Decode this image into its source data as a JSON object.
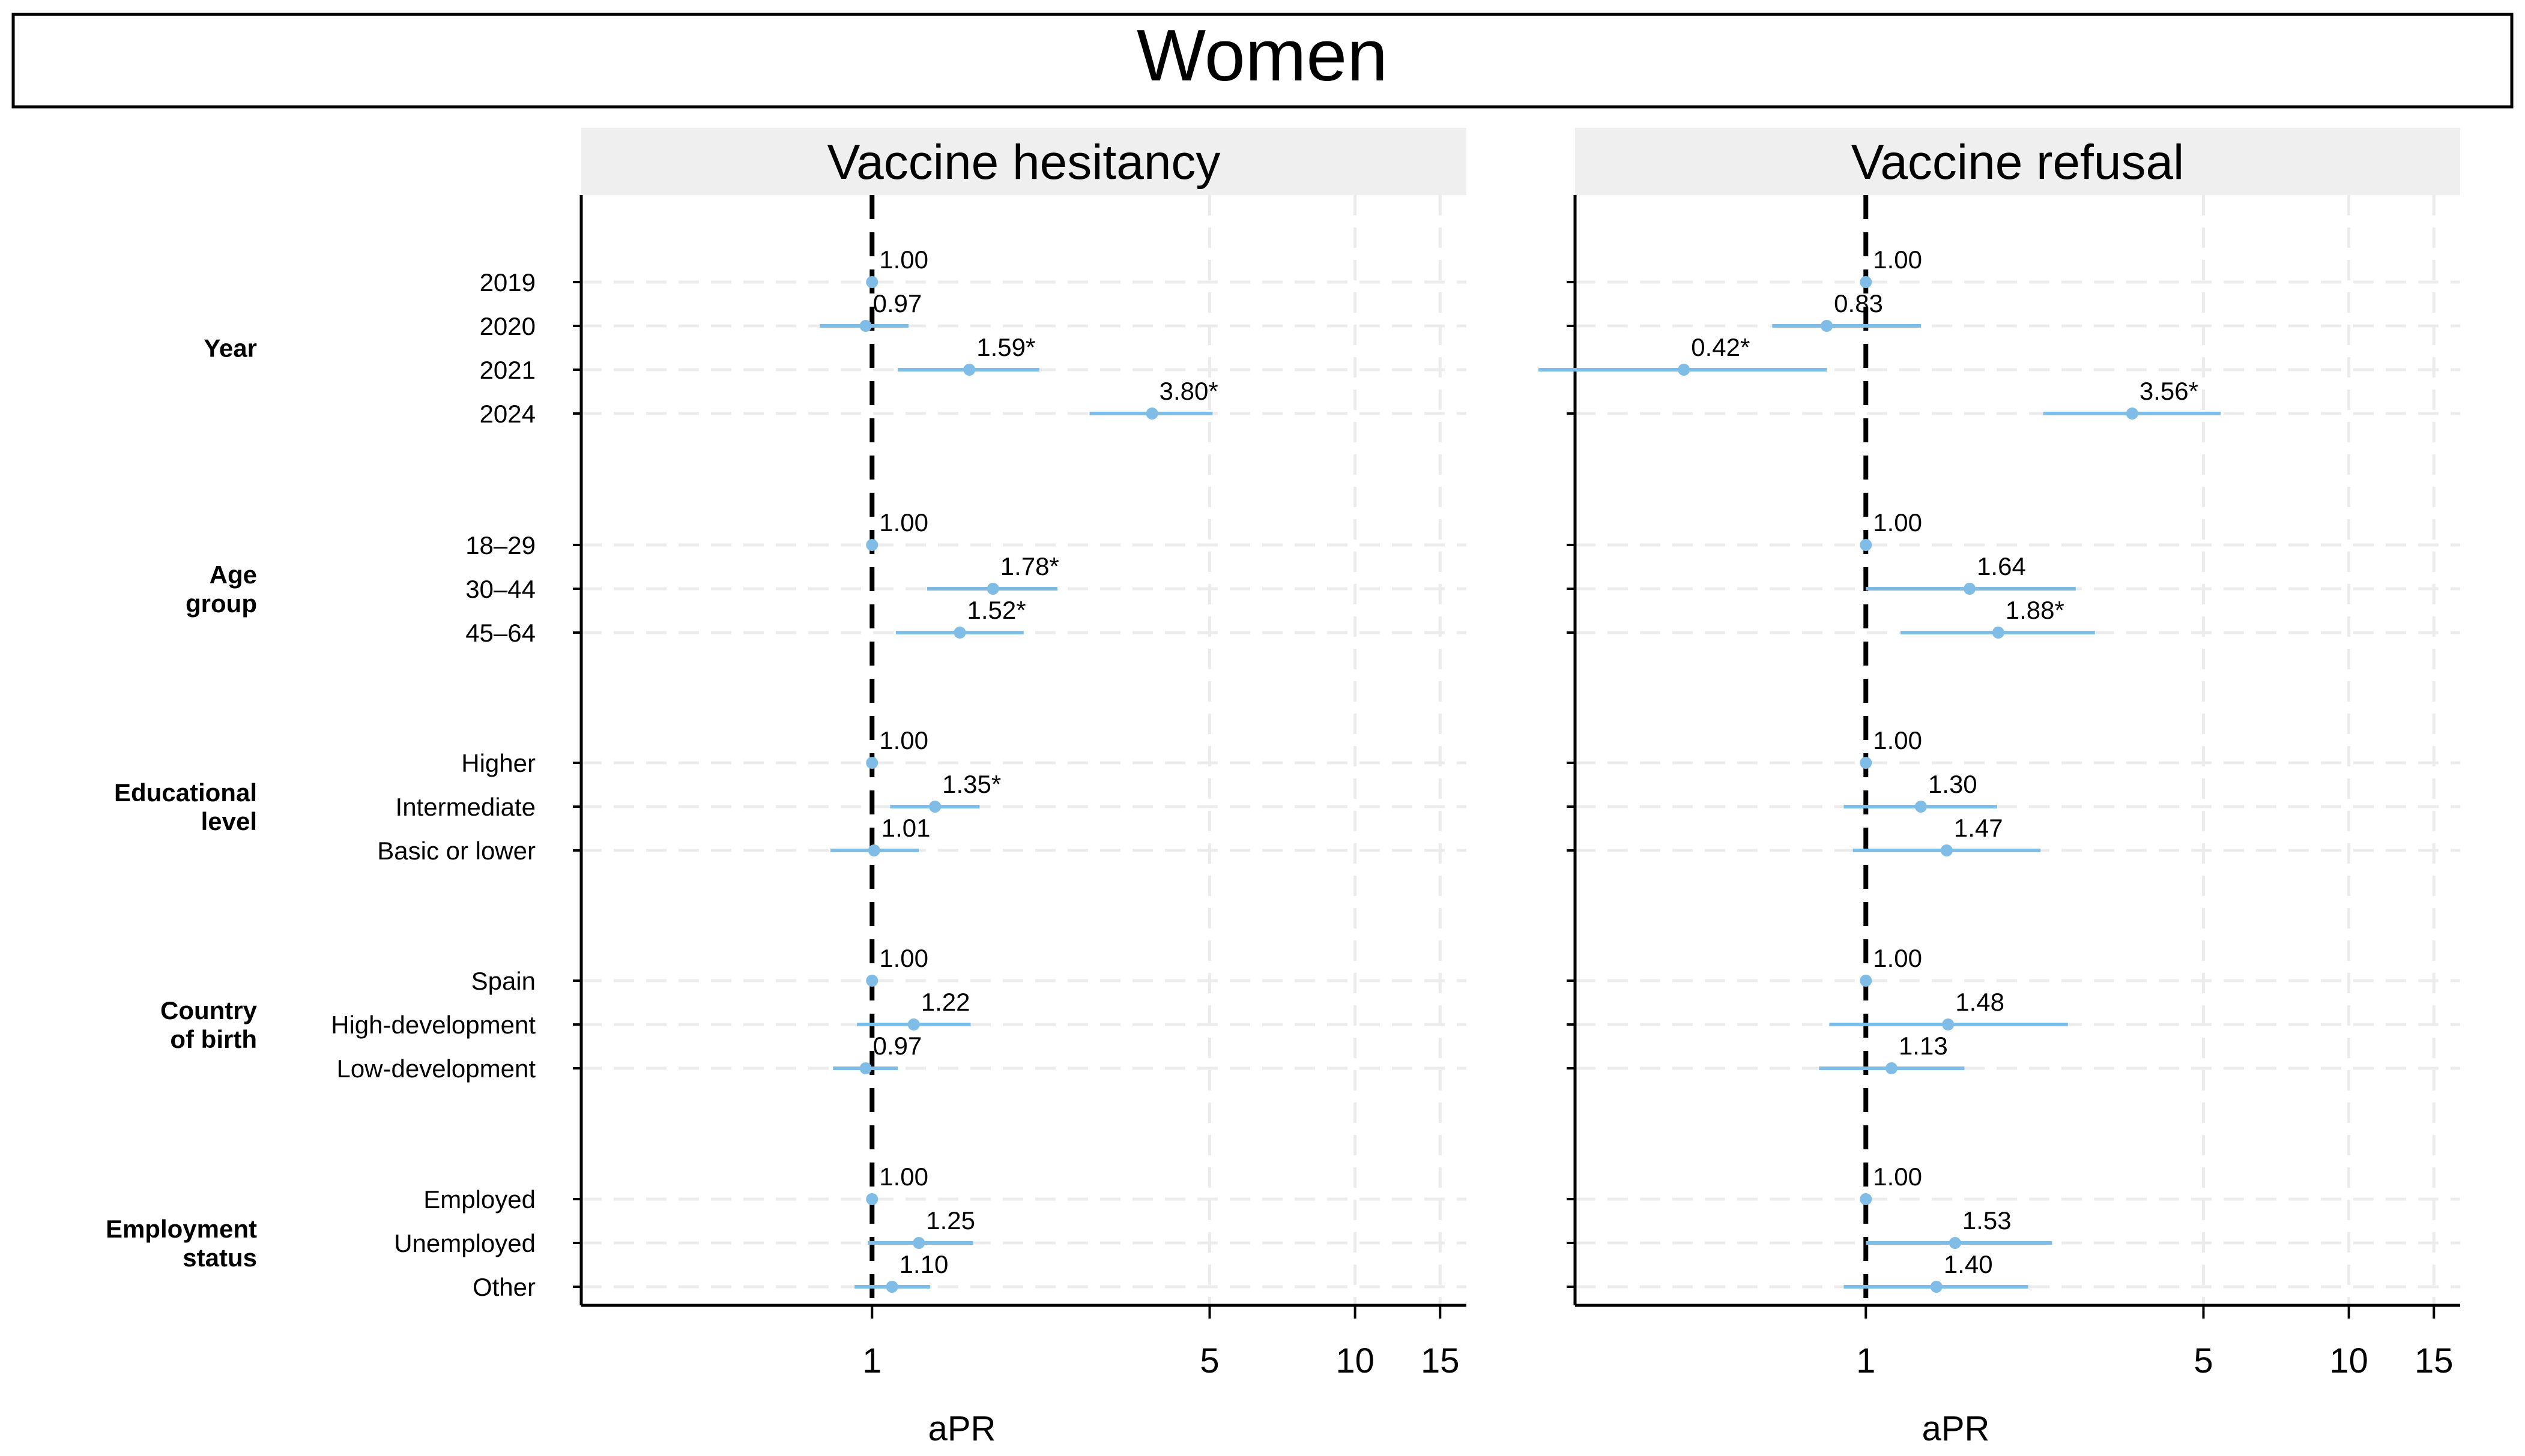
{
  "chart_data": {
    "type": "forest",
    "title": "Women",
    "xlabel": "aPR",
    "x_scale": "log",
    "xlim": [
      0.25,
      17
    ],
    "reference_line": 1,
    "x_ticks": [
      1,
      5,
      10,
      15
    ],
    "x_tick_labels": [
      "1",
      "5",
      "10",
      "15"
    ],
    "grid": true,
    "groups": [
      {
        "label": "Year",
        "categories": [
          "2019",
          "2020",
          "2021",
          "2024"
        ]
      },
      {
        "label": "Age\ngroup",
        "categories": [
          "18–29",
          "30–44",
          "45–64"
        ]
      },
      {
        "label": "Educational\nlevel",
        "categories": [
          "Higher",
          "Intermediate",
          "Basic or lower"
        ]
      },
      {
        "label": "Country\nof birth",
        "categories": [
          "Spain",
          "High-development",
          "Low-development"
        ]
      },
      {
        "label": "Employment\nstatus",
        "categories": [
          "Employed",
          "Unemployed",
          "Other"
        ]
      }
    ],
    "panels": [
      {
        "name": "Vaccine hesitancy",
        "estimates": [
          {
            "value": 1.0,
            "low": 1.0,
            "high": 1.0,
            "label": "1.00"
          },
          {
            "value": 0.97,
            "low": 0.78,
            "high": 1.19,
            "label": "0.97"
          },
          {
            "value": 1.59,
            "low": 1.13,
            "high": 2.22,
            "label": "1.59*"
          },
          {
            "value": 3.8,
            "low": 2.82,
            "high": 5.07,
            "label": "3.80*"
          },
          {
            "value": 1.0,
            "low": 1.0,
            "high": 1.0,
            "label": "1.00"
          },
          {
            "value": 1.78,
            "low": 1.3,
            "high": 2.42,
            "label": "1.78*"
          },
          {
            "value": 1.52,
            "low": 1.12,
            "high": 2.06,
            "label": "1.52*"
          },
          {
            "value": 1.0,
            "low": 1.0,
            "high": 1.0,
            "label": "1.00"
          },
          {
            "value": 1.35,
            "low": 1.09,
            "high": 1.67,
            "label": "1.35*"
          },
          {
            "value": 1.01,
            "low": 0.82,
            "high": 1.25,
            "label": "1.01"
          },
          {
            "value": 1.0,
            "low": 1.0,
            "high": 1.0,
            "label": "1.00"
          },
          {
            "value": 1.22,
            "low": 0.93,
            "high": 1.6,
            "label": "1.22"
          },
          {
            "value": 0.97,
            "low": 0.83,
            "high": 1.13,
            "label": "0.97"
          },
          {
            "value": 1.0,
            "low": 1.0,
            "high": 1.0,
            "label": "1.00"
          },
          {
            "value": 1.25,
            "low": 0.98,
            "high": 1.62,
            "label": "1.25"
          },
          {
            "value": 1.1,
            "low": 0.92,
            "high": 1.32,
            "label": "1.10"
          }
        ]
      },
      {
        "name": "Vaccine refusal",
        "estimates": [
          {
            "value": 1.0,
            "low": 1.0,
            "high": 1.0,
            "label": "1.00"
          },
          {
            "value": 0.83,
            "low": 0.64,
            "high": 1.3,
            "label": "0.83"
          },
          {
            "value": 0.42,
            "low": 0.21,
            "high": 0.83,
            "label": "0.42*"
          },
          {
            "value": 3.56,
            "low": 2.33,
            "high": 5.43,
            "label": "3.56*"
          },
          {
            "value": 1.0,
            "low": 1.0,
            "high": 1.0,
            "label": "1.00"
          },
          {
            "value": 1.64,
            "low": 1.0,
            "high": 2.72,
            "label": "1.64"
          },
          {
            "value": 1.88,
            "low": 1.18,
            "high": 2.98,
            "label": "1.88*"
          },
          {
            "value": 1.0,
            "low": 1.0,
            "high": 1.0,
            "label": "1.00"
          },
          {
            "value": 1.3,
            "low": 0.9,
            "high": 1.87,
            "label": "1.30"
          },
          {
            "value": 1.47,
            "low": 0.94,
            "high": 2.3,
            "label": "1.47"
          },
          {
            "value": 1.0,
            "low": 1.0,
            "high": 1.0,
            "label": "1.00"
          },
          {
            "value": 1.48,
            "low": 0.84,
            "high": 2.62,
            "label": "1.48"
          },
          {
            "value": 1.13,
            "low": 0.8,
            "high": 1.6,
            "label": "1.13"
          },
          {
            "value": 1.0,
            "low": 1.0,
            "high": 1.0,
            "label": "1.00"
          },
          {
            "value": 1.53,
            "low": 1.0,
            "high": 2.43,
            "label": "1.53"
          },
          {
            "value": 1.4,
            "low": 0.9,
            "high": 2.17,
            "label": "1.40"
          }
        ]
      }
    ]
  },
  "colors": {
    "estimate": "#7fbde6",
    "strip_background": "#efefef",
    "grid": "#ececec",
    "reference_line": "#000000"
  }
}
